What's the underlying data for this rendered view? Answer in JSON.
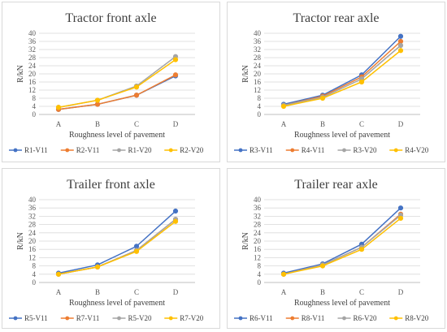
{
  "colors": {
    "s1": "#4472C4",
    "s2": "#ED7D31",
    "s3": "#A5A5A5",
    "s4": "#FFC000"
  },
  "chart_data": [
    {
      "type": "line",
      "title": "Tractor front axle",
      "xlabel": "Roughness level  of pavement",
      "ylabel": "R/kN",
      "categories": [
        "A",
        "B",
        "C",
        "D"
      ],
      "ylim": [
        0,
        40
      ],
      "yticks": [
        "0",
        "4",
        "8",
        "12",
        "16",
        "20",
        "24",
        "28",
        "32",
        "36",
        "40"
      ],
      "legend_position": "bottom",
      "series": [
        {
          "name": "R1-V11",
          "values": [
            2.5,
            5,
            9.5,
            19
          ]
        },
        {
          "name": "R2-V11",
          "values": [
            2.5,
            5,
            9.5,
            19.5
          ]
        },
        {
          "name": "R1-V20",
          "values": [
            3.5,
            7,
            14,
            28.5
          ]
        },
        {
          "name": "R2-V20",
          "values": [
            3.5,
            7,
            13.5,
            27
          ]
        }
      ]
    },
    {
      "type": "line",
      "title": "Tractor rear axle",
      "xlabel": "Roughness level  of pavement",
      "ylabel": "R/kN",
      "categories": [
        "A",
        "B",
        "C",
        "D"
      ],
      "ylim": [
        0,
        40
      ],
      "yticks": [
        "0",
        "4",
        "8",
        "12",
        "16",
        "20",
        "24",
        "28",
        "32",
        "36",
        "40"
      ],
      "legend_position": "bottom",
      "series": [
        {
          "name": "R3-V11",
          "values": [
            5,
            9.5,
            19.5,
            38.5
          ]
        },
        {
          "name": "R4-V11",
          "values": [
            4.5,
            9,
            18.5,
            36
          ]
        },
        {
          "name": "R3-V20",
          "values": [
            4.5,
            8.5,
            17.5,
            34
          ]
        },
        {
          "name": "R4-V20",
          "values": [
            4,
            8,
            16,
            31.5
          ]
        }
      ]
    },
    {
      "type": "line",
      "title": "Trailer front axle",
      "xlabel": "Roughness level  of pavement",
      "ylabel": "R/kN",
      "categories": [
        "A",
        "B",
        "C",
        "D"
      ],
      "ylim": [
        0,
        40
      ],
      "yticks": [
        "0",
        "4",
        "8",
        "12",
        "16",
        "20",
        "24",
        "28",
        "32",
        "36",
        "40"
      ],
      "legend_position": "bottom",
      "series": [
        {
          "name": "R5-V11",
          "values": [
            4.5,
            8.5,
            17.5,
            34.5
          ]
        },
        {
          "name": "R7-V11",
          "values": [
            4,
            7.5,
            15.5,
            30.5
          ]
        },
        {
          "name": "R5-V20",
          "values": [
            4,
            7.5,
            15.5,
            30.5
          ]
        },
        {
          "name": "R7-V20",
          "values": [
            4,
            7.5,
            15,
            29.5
          ]
        }
      ]
    },
    {
      "type": "line",
      "title": "Trailer rear axle",
      "xlabel": "Roughness level  of pavement",
      "ylabel": "R/kN",
      "categories": [
        "A",
        "B",
        "C",
        "D"
      ],
      "ylim": [
        0,
        40
      ],
      "yticks": [
        "0",
        "4",
        "8",
        "12",
        "16",
        "20",
        "24",
        "28",
        "32",
        "36",
        "40"
      ],
      "legend_position": "bottom",
      "series": [
        {
          "name": "R6-V11",
          "values": [
            4.5,
            9,
            18.5,
            36
          ]
        },
        {
          "name": "R8-V11",
          "values": [
            4,
            8.5,
            17,
            33
          ]
        },
        {
          "name": "R6-V20",
          "values": [
            4,
            8.5,
            17,
            32.5
          ]
        },
        {
          "name": "R8-V20",
          "values": [
            4,
            8,
            16,
            31
          ]
        }
      ]
    }
  ]
}
